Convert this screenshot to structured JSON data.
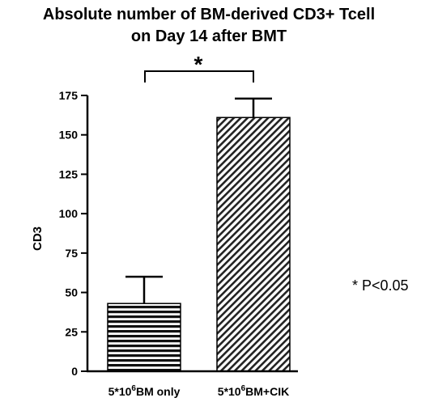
{
  "chart_data": {
    "type": "bar",
    "title_line1": "Absolute number of BM-derived CD3+ Tcell",
    "title_line2": "on Day 14 after BMT",
    "ylabel": "CD3",
    "xlabel": "",
    "ylim": [
      0,
      175
    ],
    "yticks": [
      0,
      25,
      50,
      75,
      100,
      125,
      150,
      175
    ],
    "categories": [
      {
        "base": "5*10",
        "sup": "6",
        "rest": "BM only"
      },
      {
        "base": "5*10",
        "sup": "6",
        "rest": "BM+CIK"
      }
    ],
    "values": [
      43,
      161
    ],
    "errors": [
      17,
      12
    ],
    "patterns": [
      "horizontal",
      "diagonal"
    ],
    "significance_marker": "*",
    "note": "* P<0.05",
    "grid": false
  },
  "colors": {
    "foreground": "#000000",
    "background": "#ffffff"
  }
}
